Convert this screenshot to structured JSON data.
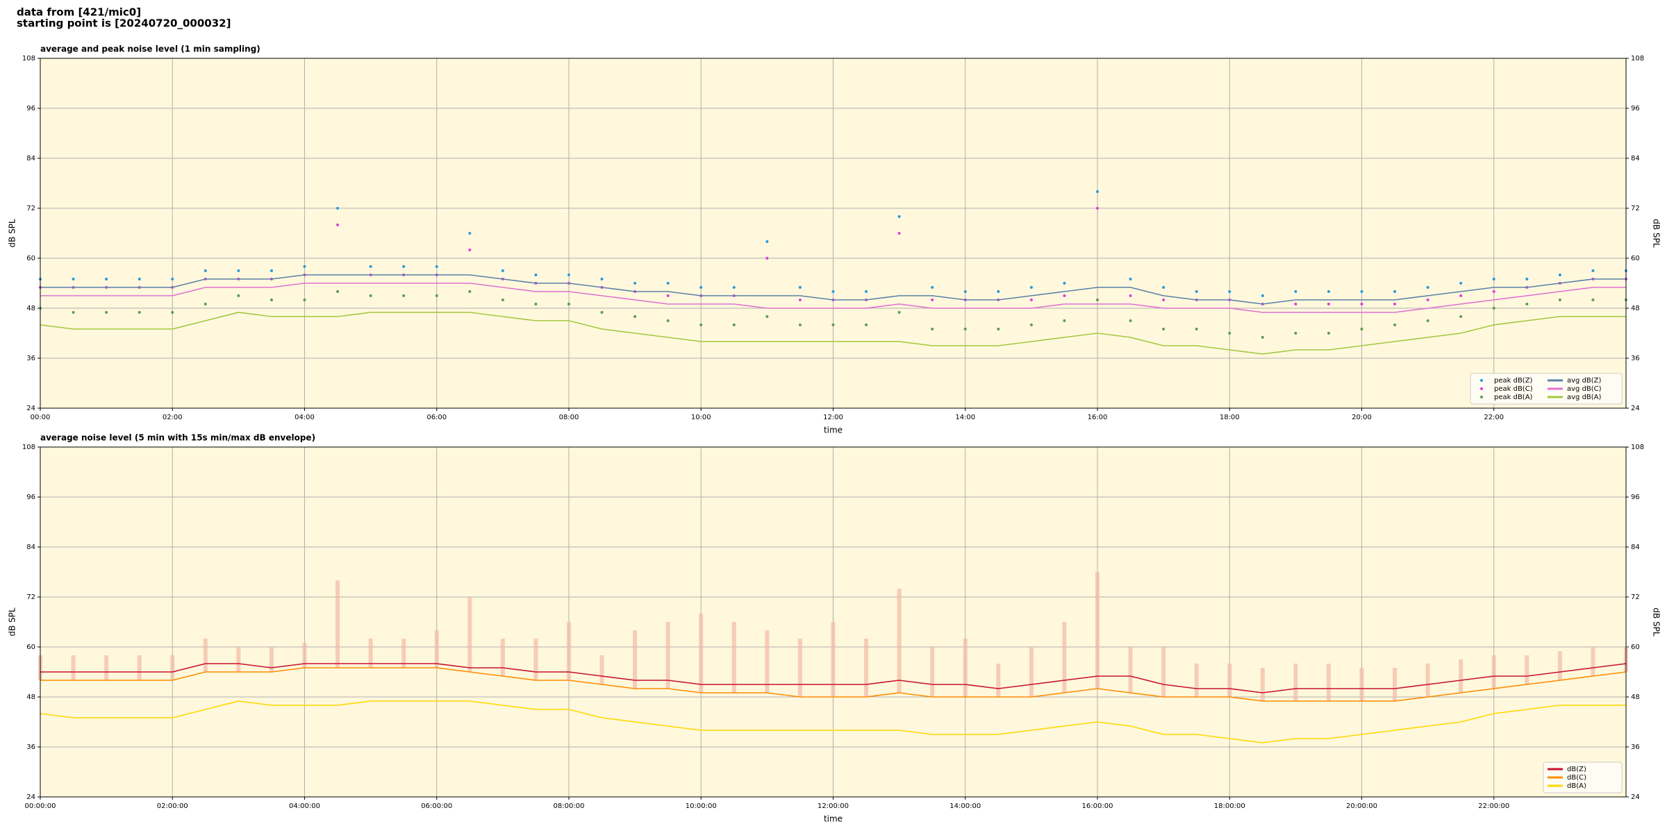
{
  "header": {
    "source": "data from [421/mic0]",
    "start": "starting point is [20240720_000032]"
  },
  "chart_data": [
    {
      "type": "line",
      "title": "average and peak noise level (1 min sampling)",
      "xlabel": "time",
      "ylabel": "dB SPL",
      "x": [
        0,
        0.5,
        1,
        1.5,
        2,
        2.5,
        3,
        3.5,
        4,
        4.5,
        5,
        5.5,
        6,
        6.5,
        7,
        7.5,
        8,
        8.5,
        9,
        9.5,
        10,
        10.5,
        11,
        11.5,
        12,
        12.5,
        13,
        13.5,
        14,
        14.5,
        15,
        15.5,
        16,
        16.5,
        17,
        17.5,
        18,
        18.5,
        19,
        19.5,
        20,
        20.5,
        21,
        21.5,
        22,
        22.5,
        23,
        23.5,
        24
      ],
      "xlim": [
        0,
        24
      ],
      "xticks": [
        {
          "value": 0,
          "label": "00:00"
        },
        {
          "value": 2,
          "label": "02:00"
        },
        {
          "value": 4,
          "label": "04:00"
        },
        {
          "value": 6,
          "label": "06:00"
        },
        {
          "value": 8,
          "label": "08:00"
        },
        {
          "value": 10,
          "label": "10:00"
        },
        {
          "value": 12,
          "label": "12:00"
        },
        {
          "value": 14,
          "label": "14:00"
        },
        {
          "value": 16,
          "label": "16:00"
        },
        {
          "value": 18,
          "label": "18:00"
        },
        {
          "value": 20,
          "label": "20:00"
        },
        {
          "value": 22,
          "label": "22:00"
        }
      ],
      "ylim": [
        24,
        108
      ],
      "yticks": [
        24,
        36,
        48,
        60,
        72,
        84,
        96,
        108
      ],
      "y2lim": [
        24,
        108
      ],
      "y2ticks": [
        24,
        36,
        48,
        60,
        72,
        84,
        96,
        108
      ],
      "grid": true,
      "legend": "lower right",
      "legend_columns": 2,
      "series": [
        {
          "name": "peak dB(Z)",
          "style": "points",
          "color": "#2a9ad8",
          "values": [
            55,
            55,
            55,
            55,
            55,
            57,
            57,
            57,
            58,
            72,
            58,
            58,
            58,
            66,
            57,
            56,
            56,
            55,
            54,
            54,
            53,
            53,
            64,
            53,
            52,
            52,
            70,
            53,
            52,
            52,
            53,
            54,
            76,
            55,
            53,
            52,
            52,
            51,
            52,
            52,
            52,
            52,
            53,
            54,
            55,
            55,
            56,
            57,
            57
          ]
        },
        {
          "name": "peak dB(C)",
          "style": "points",
          "color": "#e23ce0",
          "values": [
            53,
            53,
            53,
            53,
            53,
            55,
            55,
            55,
            56,
            68,
            56,
            56,
            56,
            62,
            55,
            54,
            54,
            53,
            52,
            51,
            51,
            51,
            60,
            50,
            50,
            50,
            66,
            50,
            50,
            50,
            50,
            51,
            72,
            51,
            50,
            50,
            50,
            49,
            49,
            49,
            49,
            49,
            50,
            51,
            52,
            53,
            54,
            55,
            55
          ]
        },
        {
          "name": "peak dB(A)",
          "style": "points",
          "color": "#5a9e52",
          "values": [
            48,
            47,
            47,
            47,
            47,
            49,
            51,
            50,
            50,
            52,
            51,
            51,
            51,
            52,
            50,
            49,
            49,
            47,
            46,
            45,
            44,
            44,
            46,
            44,
            44,
            44,
            47,
            43,
            43,
            43,
            44,
            45,
            50,
            45,
            43,
            43,
            42,
            41,
            42,
            42,
            43,
            44,
            45,
            46,
            48,
            49,
            50,
            50,
            50
          ]
        },
        {
          "name": "avg dB(Z)",
          "style": "line",
          "color": "#5a80a8",
          "values": [
            53,
            53,
            53,
            53,
            53,
            55,
            55,
            55,
            56,
            56,
            56,
            56,
            56,
            56,
            55,
            54,
            54,
            53,
            52,
            52,
            51,
            51,
            51,
            51,
            50,
            50,
            51,
            51,
            50,
            50,
            51,
            52,
            53,
            53,
            51,
            50,
            50,
            49,
            50,
            50,
            50,
            50,
            51,
            52,
            53,
            53,
            54,
            55,
            55
          ]
        },
        {
          "name": "avg dB(C)",
          "style": "line",
          "color": "#e070d4",
          "values": [
            51,
            51,
            51,
            51,
            51,
            53,
            53,
            53,
            54,
            54,
            54,
            54,
            54,
            54,
            53,
            52,
            52,
            51,
            50,
            49,
            49,
            49,
            48,
            48,
            48,
            48,
            49,
            48,
            48,
            48,
            48,
            49,
            49,
            49,
            48,
            48,
            48,
            47,
            47,
            47,
            47,
            47,
            48,
            49,
            50,
            51,
            52,
            53,
            53
          ]
        },
        {
          "name": "avg dB(A)",
          "style": "line",
          "color": "#a2c83c",
          "values": [
            44,
            43,
            43,
            43,
            43,
            45,
            47,
            46,
            46,
            46,
            47,
            47,
            47,
            47,
            46,
            45,
            45,
            43,
            42,
            41,
            40,
            40,
            40,
            40,
            40,
            40,
            40,
            39,
            39,
            39,
            40,
            41,
            42,
            41,
            39,
            39,
            38,
            37,
            38,
            38,
            39,
            40,
            41,
            42,
            44,
            45,
            46,
            46,
            46
          ]
        }
      ]
    },
    {
      "type": "line",
      "title": "average noise level (5 min with 15s min/max dB envelope)",
      "xlabel": "time",
      "ylabel": "dB SPL",
      "x": [
        0,
        0.5,
        1,
        1.5,
        2,
        2.5,
        3,
        3.5,
        4,
        4.5,
        5,
        5.5,
        6,
        6.5,
        7,
        7.5,
        8,
        8.5,
        9,
        9.5,
        10,
        10.5,
        11,
        11.5,
        12,
        12.5,
        13,
        13.5,
        14,
        14.5,
        15,
        15.5,
        16,
        16.5,
        17,
        17.5,
        18,
        18.5,
        19,
        19.5,
        20,
        20.5,
        21,
        21.5,
        22,
        22.5,
        23,
        23.5,
        24
      ],
      "xlim": [
        0,
        24
      ],
      "xticks": [
        {
          "value": 0,
          "label": "00:00:00"
        },
        {
          "value": 2,
          "label": "02:00:00"
        },
        {
          "value": 4,
          "label": "04:00:00"
        },
        {
          "value": 6,
          "label": "06:00:00"
        },
        {
          "value": 8,
          "label": "08:00:00"
        },
        {
          "value": 10,
          "label": "10:00:00"
        },
        {
          "value": 12,
          "label": "12:00:00"
        },
        {
          "value": 14,
          "label": "14:00:00"
        },
        {
          "value": 16,
          "label": "16:00:00"
        },
        {
          "value": 18,
          "label": "18:00:00"
        },
        {
          "value": 20,
          "label": "20:00:00"
        },
        {
          "value": 22,
          "label": "22:00:00"
        }
      ],
      "ylim": [
        24,
        108
      ],
      "yticks": [
        24,
        36,
        48,
        60,
        72,
        84,
        96,
        108
      ],
      "y2lim": [
        24,
        108
      ],
      "y2ticks": [
        24,
        36,
        48,
        60,
        72,
        84,
        96,
        108
      ],
      "grid": true,
      "legend": "lower right",
      "legend_columns": 1,
      "envelope": {
        "color": "#f4b9a6",
        "values": [
          58,
          58,
          58,
          58,
          58,
          62,
          60,
          60,
          61,
          76,
          62,
          62,
          64,
          72,
          62,
          62,
          66,
          58,
          64,
          66,
          68,
          66,
          64,
          62,
          66,
          62,
          74,
          60,
          62,
          56,
          60,
          66,
          78,
          60,
          60,
          56,
          56,
          55,
          56,
          56,
          55,
          55,
          56,
          57,
          58,
          58,
          59,
          60,
          60
        ]
      },
      "series": [
        {
          "name": "dB(Z)",
          "style": "line",
          "color": "#c8102e",
          "values": [
            54,
            54,
            54,
            54,
            54,
            56,
            56,
            55,
            56,
            56,
            56,
            56,
            56,
            55,
            55,
            54,
            54,
            53,
            52,
            52,
            51,
            51,
            51,
            51,
            51,
            51,
            52,
            51,
            51,
            50,
            51,
            52,
            53,
            53,
            51,
            50,
            50,
            49,
            50,
            50,
            50,
            50,
            51,
            52,
            53,
            53,
            54,
            55,
            56
          ]
        },
        {
          "name": "dB(C)",
          "style": "line",
          "color": "#ff8c00",
          "values": [
            52,
            52,
            52,
            52,
            52,
            54,
            54,
            54,
            55,
            55,
            55,
            55,
            55,
            54,
            53,
            52,
            52,
            51,
            50,
            50,
            49,
            49,
            49,
            48,
            48,
            48,
            49,
            48,
            48,
            48,
            48,
            49,
            50,
            49,
            48,
            48,
            48,
            47,
            47,
            47,
            47,
            47,
            48,
            49,
            50,
            51,
            52,
            53,
            54
          ]
        },
        {
          "name": "dB(A)",
          "style": "line",
          "color": "#ffd700",
          "values": [
            44,
            43,
            43,
            43,
            43,
            45,
            47,
            46,
            46,
            46,
            47,
            47,
            47,
            47,
            46,
            45,
            45,
            43,
            42,
            41,
            40,
            40,
            40,
            40,
            40,
            40,
            40,
            39,
            39,
            39,
            40,
            41,
            42,
            41,
            39,
            39,
            38,
            37,
            38,
            38,
            39,
            40,
            41,
            42,
            44,
            45,
            46,
            46,
            46
          ]
        }
      ]
    }
  ]
}
